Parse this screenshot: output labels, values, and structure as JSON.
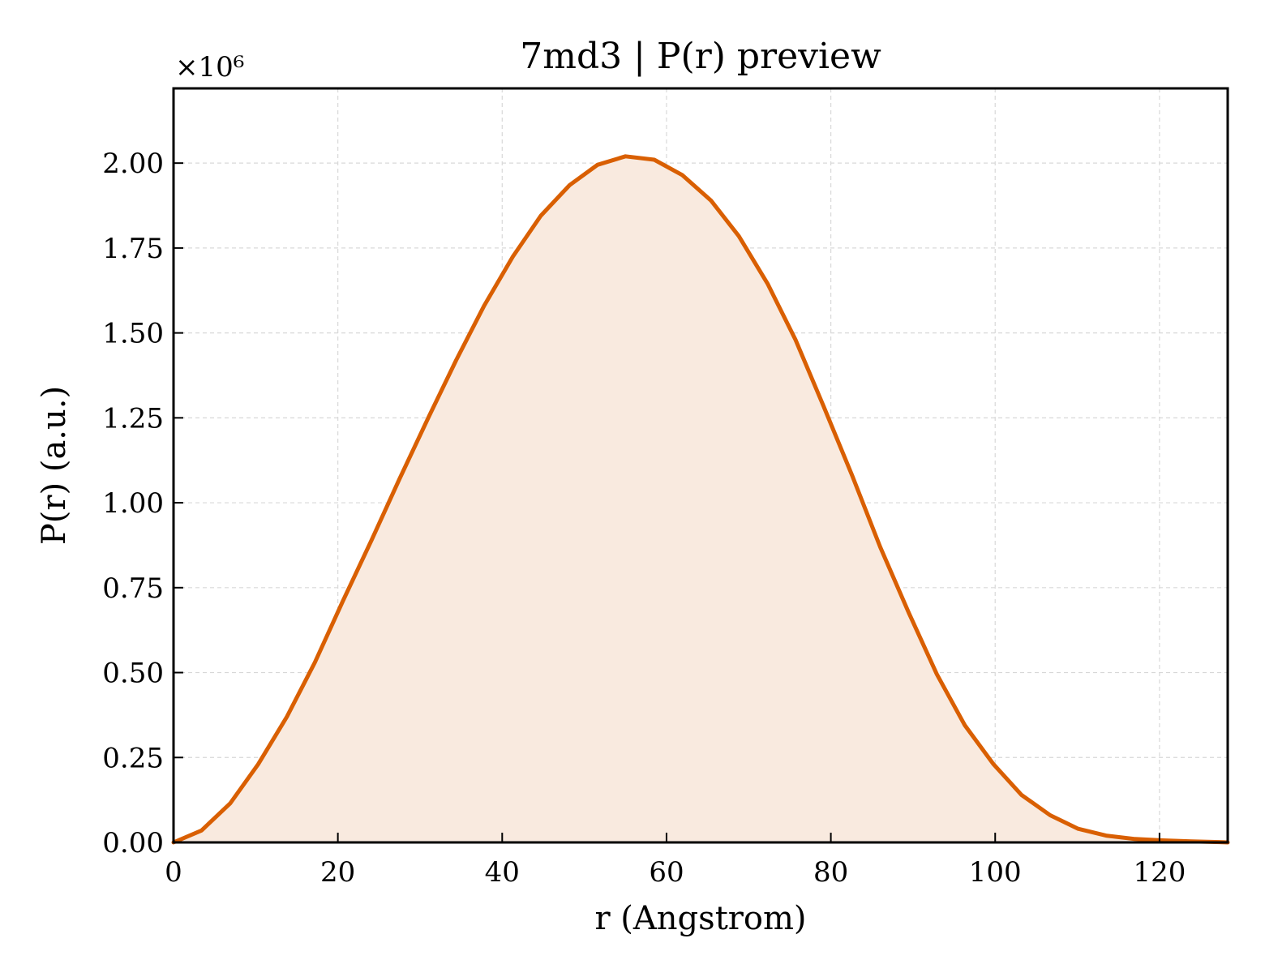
{
  "chart_data": {
    "type": "area",
    "title": "7md3 | P(r) preview",
    "xlabel": "r (Angstrom)",
    "ylabel": "P(r) (a.u.)",
    "y_offset_label": "×10⁶",
    "xlim": [
      0,
      128.3
    ],
    "ylim": [
      0,
      2.22
    ],
    "y_multiplier": 1000000,
    "x_ticks": [
      0,
      20,
      40,
      60,
      80,
      100,
      120
    ],
    "x_tick_labels": [
      "0",
      "20",
      "40",
      "60",
      "80",
      "100",
      "120"
    ],
    "y_ticks": [
      0,
      0.25,
      0.5,
      0.75,
      1.0,
      1.25,
      1.5,
      1.75,
      2.0
    ],
    "y_tick_labels": [
      "0.00",
      "0.25",
      "0.50",
      "0.75",
      "1.00",
      "1.25",
      "1.50",
      "1.75",
      "2.00"
    ],
    "grid": true,
    "series": [
      {
        "color": "#d95f02",
        "fill_color": "#f9eadf",
        "x": [
          0,
          3.4,
          6.9,
          10.3,
          13.8,
          17.2,
          20.6,
          24.1,
          27.5,
          31.0,
          34.4,
          37.8,
          41.3,
          44.7,
          48.2,
          51.6,
          55.0,
          58.5,
          61.9,
          65.4,
          68.8,
          72.3,
          75.7,
          79.1,
          82.6,
          86.0,
          89.5,
          92.9,
          96.3,
          99.8,
          103.2,
          106.7,
          110.1,
          113.5,
          117.0,
          120.4,
          123.9,
          127.3,
          128.3
        ],
        "y": [
          0.0,
          0.035,
          0.115,
          0.23,
          0.37,
          0.53,
          0.71,
          0.89,
          1.07,
          1.25,
          1.42,
          1.58,
          1.725,
          1.845,
          1.935,
          1.995,
          2.02,
          2.01,
          1.965,
          1.89,
          1.785,
          1.645,
          1.48,
          1.285,
          1.08,
          0.87,
          0.675,
          0.495,
          0.345,
          0.23,
          0.14,
          0.08,
          0.04,
          0.02,
          0.01,
          0.006,
          0.003,
          0.001,
          0.0
        ]
      }
    ]
  }
}
